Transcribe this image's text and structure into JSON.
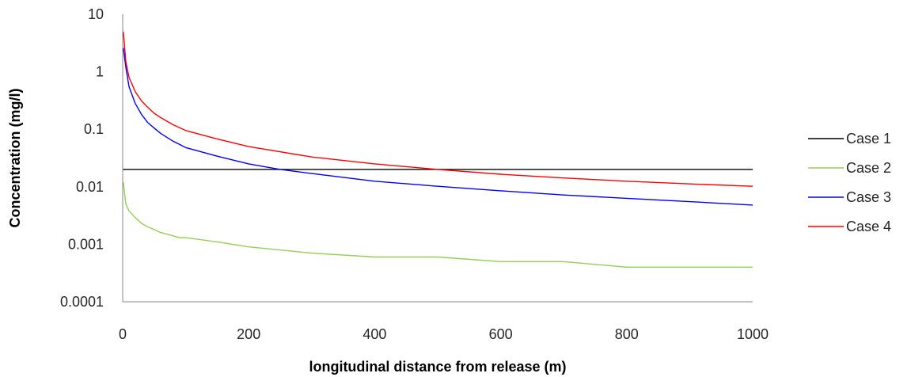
{
  "chart_data": {
    "type": "line",
    "xlabel": "longitudinal distance from release (m)",
    "ylabel": "Concentration (mg/l)",
    "xlim": [
      0,
      1000
    ],
    "ylim": [
      0.0001,
      10
    ],
    "yscale": "log",
    "grid": false,
    "legend_position": "right",
    "x_ticks": [
      {
        "value": 0,
        "label": "0"
      },
      {
        "value": 200,
        "label": "200"
      },
      {
        "value": 400,
        "label": "400"
      },
      {
        "value": 600,
        "label": "600"
      },
      {
        "value": 800,
        "label": "800"
      },
      {
        "value": 1000,
        "label": "1000"
      }
    ],
    "y_ticks": [
      {
        "value": 10,
        "label": "10"
      },
      {
        "value": 1,
        "label": "1"
      },
      {
        "value": 0.1,
        "label": "0.1"
      },
      {
        "value": 0.01,
        "label": "0.01"
      },
      {
        "value": 0.001,
        "label": "0.001"
      },
      {
        "value": 0.0001,
        "label": "0.0001"
      }
    ],
    "series": [
      {
        "name": "Case 1",
        "color": "#000000",
        "x": [
          0,
          1000
        ],
        "y": [
          0.02,
          0.02
        ]
      },
      {
        "name": "Case 2",
        "color": "#92d050",
        "x": [
          1,
          5,
          10,
          20,
          30,
          40,
          50,
          60,
          70,
          80,
          90,
          100,
          150,
          200,
          300,
          400,
          500,
          600,
          700,
          800,
          900,
          1000
        ],
        "y": [
          0.012,
          0.005,
          0.0038,
          0.0029,
          0.0023,
          0.002,
          0.0018,
          0.0016,
          0.0015,
          0.0014,
          0.0013,
          0.0013,
          0.0011,
          0.0009,
          0.0007,
          0.0006,
          0.0006,
          0.0005,
          0.0005,
          0.0004,
          0.0004,
          0.0004
        ]
      },
      {
        "name": "Case 3",
        "color": "#0000ff",
        "x": [
          1,
          5,
          10,
          20,
          30,
          40,
          50,
          60,
          80,
          100,
          150,
          200,
          250,
          300,
          400,
          500,
          600,
          700,
          800,
          900,
          1000
        ],
        "y": [
          2.6,
          1.2,
          0.55,
          0.28,
          0.18,
          0.13,
          0.105,
          0.085,
          0.062,
          0.048,
          0.034,
          0.025,
          0.02,
          0.017,
          0.0125,
          0.0102,
          0.0085,
          0.0072,
          0.0063,
          0.0055,
          0.0048
        ]
      },
      {
        "name": "Case 4",
        "color": "#ff0000",
        "x": [
          1,
          5,
          10,
          20,
          30,
          40,
          50,
          60,
          80,
          100,
          150,
          200,
          300,
          400,
          500,
          600,
          700,
          800,
          900,
          1000
        ],
        "y": [
          5,
          1.5,
          0.8,
          0.45,
          0.31,
          0.24,
          0.19,
          0.16,
          0.12,
          0.095,
          0.068,
          0.05,
          0.033,
          0.025,
          0.02,
          0.0165,
          0.0142,
          0.0125,
          0.0112,
          0.0102
        ]
      }
    ]
  }
}
